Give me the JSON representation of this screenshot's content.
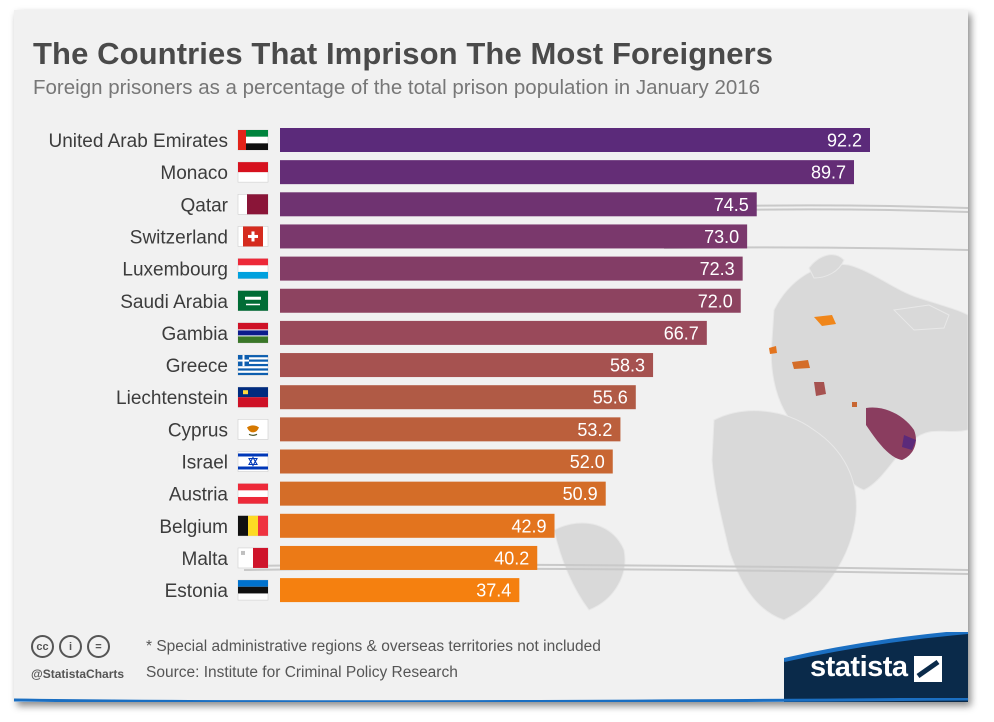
{
  "header": {
    "title": "The Countries That Imprison The Most Foreigners",
    "subtitle": "Foreign prisoners as a percentage of the total prison population in January 2016"
  },
  "chart_data": {
    "type": "bar",
    "orientation": "horizontal",
    "categories": [
      "United Arab Emirates",
      "Monaco",
      "Qatar",
      "Switzerland",
      "Luxembourg",
      "Saudi Arabia",
      "Gambia",
      "Greece",
      "Liechtenstein",
      "Cyprus",
      "Israel",
      "Austria",
      "Belgium",
      "Malta",
      "Estonia"
    ],
    "values": [
      92.2,
      89.7,
      74.5,
      73.0,
      72.3,
      72.0,
      66.7,
      58.3,
      55.6,
      53.2,
      52.0,
      50.9,
      42.9,
      40.2,
      37.4
    ],
    "value_labels": [
      "92.2",
      "89.7",
      "74.5",
      "73.0",
      "72.3",
      "72.0",
      "66.7",
      "58.3",
      "55.6",
      "53.2",
      "52.0",
      "50.9",
      "42.9",
      "40.2",
      "37.4"
    ],
    "bar_colors": [
      "#5b2a7a",
      "#642d76",
      "#6f3371",
      "#7a386c",
      "#833d66",
      "#8d4360",
      "#99495a",
      "#a65250",
      "#b05a45",
      "#bb5f3c",
      "#c86632",
      "#d46d28",
      "#e3741e",
      "#ec7a16",
      "#f5800f"
    ],
    "flags": [
      "uae-flag-icon",
      "monaco-flag-icon",
      "qatar-flag-icon",
      "switzerland-flag-icon",
      "luxembourg-flag-icon",
      "saudi-arabia-flag-icon",
      "gambia-flag-icon",
      "greece-flag-icon",
      "liechtenstein-flag-icon",
      "cyprus-flag-icon",
      "israel-flag-icon",
      "austria-flag-icon",
      "belgium-flag-icon",
      "malta-flag-icon",
      "estonia-flag-icon"
    ],
    "xlim": [
      0,
      100
    ],
    "grid": false,
    "legend": "none",
    "xlabel": "",
    "ylabel": ""
  },
  "footer": {
    "note": "* Special administrative regions & overseas territories not included",
    "source": "Source: Institute for Criminal Policy Research",
    "handle": "@StatistaCharts",
    "brand": "statista",
    "cc_icons": [
      "cc-icon",
      "by-icon",
      "nd-icon"
    ],
    "cc_labels": [
      "cc",
      "i",
      "="
    ]
  },
  "colors": {
    "background": "#f1f1f1",
    "map": "#d9d9d9",
    "brand": "#0a2a4a",
    "accent_line": "#1b6fc2"
  }
}
